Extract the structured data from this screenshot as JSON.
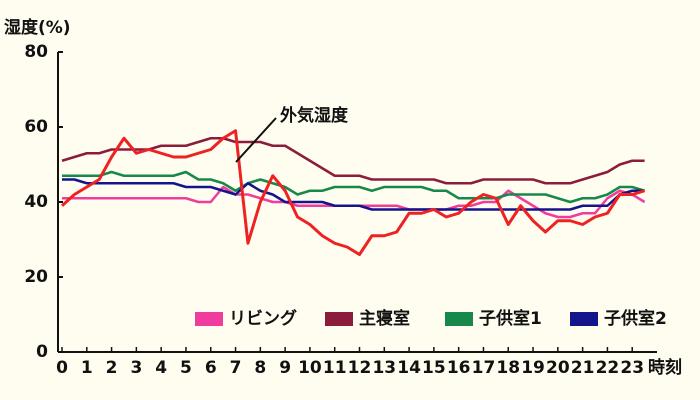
{
  "chart_data": {
    "type": "line",
    "y_axis_title": "湿度(%)",
    "x_axis_title": "時刻",
    "x": [
      0,
      0.5,
      1,
      1.5,
      2,
      2.5,
      3,
      3.5,
      4,
      4.5,
      5,
      5.5,
      6,
      6.5,
      7,
      7.5,
      8,
      8.5,
      9,
      9.5,
      10,
      10.5,
      11,
      11.5,
      12,
      12.5,
      13,
      13.5,
      14,
      14.5,
      15,
      15.5,
      16,
      16.5,
      17,
      17.5,
      18,
      18.5,
      19,
      19.5,
      20,
      20.5,
      21,
      21.5,
      22,
      22.5,
      23,
      23.5
    ],
    "xlim": [
      0,
      24
    ],
    "xticks": [
      0,
      1,
      2,
      3,
      4,
      5,
      6,
      7,
      8,
      9,
      10,
      11,
      12,
      13,
      14,
      15,
      16,
      17,
      18,
      19,
      20,
      21,
      22,
      23
    ],
    "ylim": [
      0,
      80
    ],
    "yticks": [
      0,
      20,
      40,
      60,
      80
    ],
    "grid": false,
    "series": [
      {
        "name": "リビング",
        "color": "#f03c9c",
        "legend": true,
        "values": [
          41,
          41,
          41,
          41,
          41,
          41,
          41,
          41,
          41,
          41,
          41,
          40,
          40,
          44,
          42,
          42,
          41,
          40,
          40,
          39,
          39,
          39,
          39,
          39,
          39,
          39,
          39,
          39,
          38,
          38,
          38,
          38,
          39,
          39,
          40,
          40,
          43,
          41,
          39,
          37,
          36,
          36,
          37,
          37,
          41,
          43,
          42,
          40
        ]
      },
      {
        "name": "主寝室",
        "color": "#8c1c3c",
        "legend": true,
        "values": [
          51,
          52,
          53,
          53,
          54,
          54,
          54,
          54,
          55,
          55,
          55,
          56,
          57,
          57,
          56,
          56,
          56,
          55,
          55,
          53,
          51,
          49,
          47,
          47,
          47,
          46,
          46,
          46,
          46,
          46,
          46,
          45,
          45,
          45,
          46,
          46,
          46,
          46,
          46,
          45,
          45,
          45,
          46,
          47,
          48,
          50,
          51,
          51
        ]
      },
      {
        "name": "子供室1",
        "color": "#16894a",
        "legend": true,
        "values": [
          47,
          47,
          47,
          47,
          48,
          47,
          47,
          47,
          47,
          47,
          48,
          46,
          46,
          45,
          43,
          45,
          46,
          45,
          44,
          42,
          43,
          43,
          44,
          44,
          44,
          43,
          44,
          44,
          44,
          44,
          43,
          43,
          41,
          41,
          41,
          41,
          42,
          42,
          42,
          42,
          41,
          40,
          41,
          41,
          42,
          44,
          44,
          43
        ]
      },
      {
        "name": "子供室2",
        "color": "#14148c",
        "legend": true,
        "values": [
          46,
          46,
          45,
          45,
          45,
          45,
          45,
          45,
          45,
          45,
          44,
          44,
          44,
          43,
          42,
          45,
          43,
          42,
          40,
          40,
          40,
          40,
          39,
          39,
          39,
          38,
          38,
          38,
          38,
          38,
          38,
          38,
          38,
          38,
          38,
          38,
          38,
          38,
          38,
          38,
          38,
          38,
          39,
          39,
          39,
          42,
          43,
          43
        ]
      },
      {
        "name": "外気湿度",
        "color": "#ee2222",
        "legend": false,
        "values": [
          39,
          42,
          44,
          46,
          52,
          57,
          53,
          54,
          53,
          52,
          52,
          53,
          54,
          57,
          59,
          29,
          40,
          47,
          43,
          36,
          34,
          31,
          29,
          28,
          26,
          31,
          31,
          32,
          37,
          37,
          38,
          36,
          37,
          40,
          42,
          41,
          34,
          39,
          35,
          32,
          35,
          35,
          34,
          36,
          37,
          42,
          42,
          43
        ]
      }
    ]
  }
}
